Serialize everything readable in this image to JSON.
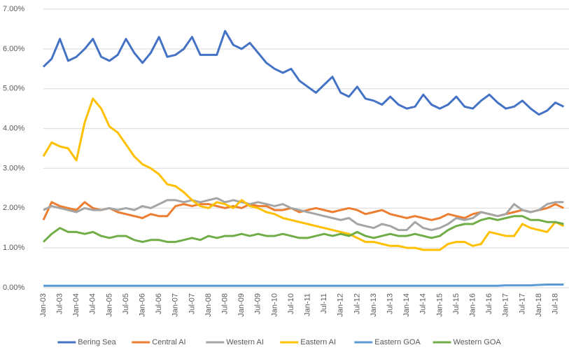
{
  "chart_data": {
    "type": "line",
    "categories": [
      "Jan-03",
      null,
      "Jul-03",
      null,
      "Jan-04",
      null,
      "Jul-04",
      null,
      "Jan-05",
      null,
      "Jul-05",
      null,
      "Jan-06",
      null,
      "Jul-06",
      null,
      "Jan-07",
      null,
      "Jul-07",
      null,
      "Jan-08",
      null,
      "Jul-08",
      null,
      "Jan-09",
      null,
      "Jul-09",
      null,
      "Jan-10",
      null,
      "Jul-10",
      null,
      "Jan-11",
      null,
      "Jul-11",
      null,
      "Jan-12",
      null,
      "Jul-12",
      null,
      "Jan-13",
      null,
      "Jul-13",
      null,
      "Jan-14",
      null,
      "Jul-14",
      null,
      "Jan-15",
      null,
      "Jul-15",
      null,
      "Jan-16",
      null,
      "Jul-16",
      null,
      "Jan-17",
      null,
      "Jul-17",
      null,
      "Jan-18",
      null,
      "Jul-18",
      null
    ],
    "series": [
      {
        "name": "Bering Sea",
        "color": "#4472c4",
        "values": [
          5.55,
          5.75,
          6.25,
          5.7,
          5.8,
          6.0,
          6.25,
          5.8,
          5.7,
          5.85,
          6.25,
          5.9,
          5.65,
          5.9,
          6.3,
          5.8,
          5.85,
          6.0,
          6.3,
          5.85,
          5.85,
          5.85,
          6.45,
          6.1,
          6.0,
          6.15,
          5.9,
          5.65,
          5.5,
          5.4,
          5.5,
          5.2,
          5.05,
          4.9,
          5.1,
          5.3,
          4.9,
          4.8,
          5.05,
          4.75,
          4.7,
          4.6,
          4.8,
          4.6,
          4.5,
          4.55,
          4.85,
          4.6,
          4.5,
          4.6,
          4.8,
          4.55,
          4.5,
          4.7,
          4.85,
          4.65,
          4.5,
          4.55,
          4.7,
          4.5,
          4.35,
          4.45,
          4.65,
          4.55
        ]
      },
      {
        "name": "Central AI",
        "color": "#ed7d31",
        "values": [
          1.7,
          2.15,
          2.05,
          2.0,
          1.95,
          2.15,
          2.0,
          1.95,
          2.0,
          1.9,
          1.85,
          1.8,
          1.75,
          1.85,
          1.8,
          1.8,
          2.05,
          2.1,
          2.05,
          2.1,
          2.1,
          2.05,
          2.0,
          2.05,
          2.0,
          2.1,
          2.05,
          2.05,
          1.95,
          1.95,
          2.0,
          1.9,
          1.95,
          2.0,
          1.95,
          1.9,
          1.95,
          2.0,
          1.95,
          1.85,
          1.9,
          1.95,
          1.85,
          1.8,
          1.75,
          1.8,
          1.75,
          1.7,
          1.75,
          1.85,
          1.8,
          1.75,
          1.85,
          1.9,
          1.85,
          1.8,
          1.85,
          1.9,
          1.95,
          1.9,
          1.95,
          2.0,
          2.1,
          2.0
        ]
      },
      {
        "name": "Western AI",
        "color": "#a5a5a5",
        "values": [
          1.95,
          2.05,
          2.0,
          1.95,
          1.9,
          2.0,
          1.95,
          1.95,
          2.0,
          1.95,
          2.0,
          1.95,
          2.05,
          2.0,
          2.1,
          2.2,
          2.2,
          2.15,
          2.2,
          2.15,
          2.2,
          2.25,
          2.15,
          2.2,
          2.15,
          2.1,
          2.15,
          2.1,
          2.05,
          2.1,
          2.0,
          1.95,
          1.9,
          1.85,
          1.8,
          1.75,
          1.7,
          1.75,
          1.6,
          1.55,
          1.5,
          1.6,
          1.55,
          1.45,
          1.45,
          1.65,
          1.5,
          1.45,
          1.5,
          1.6,
          1.75,
          1.7,
          1.75,
          1.9,
          1.85,
          1.8,
          1.85,
          2.1,
          1.95,
          1.9,
          1.95,
          2.1,
          2.15,
          2.15
        ]
      },
      {
        "name": "Eastern AI",
        "color": "#ffc000",
        "values": [
          3.3,
          3.65,
          3.55,
          3.5,
          3.2,
          4.15,
          4.75,
          4.5,
          4.05,
          3.9,
          3.6,
          3.3,
          3.1,
          3.0,
          2.85,
          2.6,
          2.55,
          2.4,
          2.2,
          2.05,
          2.0,
          2.15,
          2.1,
          2.0,
          2.2,
          2.05,
          2.0,
          1.9,
          1.85,
          1.75,
          1.7,
          1.65,
          1.6,
          1.55,
          1.5,
          1.45,
          1.4,
          1.35,
          1.25,
          1.15,
          1.15,
          1.1,
          1.05,
          1.05,
          1.0,
          1.0,
          0.95,
          0.95,
          0.95,
          1.1,
          1.15,
          1.15,
          1.05,
          1.1,
          1.4,
          1.35,
          1.3,
          1.3,
          1.6,
          1.5,
          1.45,
          1.4,
          1.65,
          1.55
        ]
      },
      {
        "name": "Eastern GOA",
        "color": "#5b9bd5",
        "values": [
          0.05,
          0.05,
          0.05,
          0.05,
          0.05,
          0.05,
          0.05,
          0.05,
          0.05,
          0.05,
          0.05,
          0.05,
          0.05,
          0.05,
          0.05,
          0.05,
          0.05,
          0.05,
          0.05,
          0.05,
          0.05,
          0.05,
          0.05,
          0.05,
          0.05,
          0.05,
          0.05,
          0.05,
          0.05,
          0.05,
          0.05,
          0.05,
          0.05,
          0.05,
          0.05,
          0.05,
          0.05,
          0.05,
          0.05,
          0.05,
          0.05,
          0.05,
          0.05,
          0.05,
          0.05,
          0.05,
          0.05,
          0.05,
          0.05,
          0.05,
          0.05,
          0.05,
          0.05,
          0.05,
          0.05,
          0.05,
          0.06,
          0.06,
          0.06,
          0.06,
          0.07,
          0.08,
          0.08,
          0.08
        ]
      },
      {
        "name": "Western GOA",
        "color": "#70ad47",
        "values": [
          1.15,
          1.35,
          1.5,
          1.4,
          1.4,
          1.35,
          1.4,
          1.3,
          1.25,
          1.3,
          1.3,
          1.2,
          1.15,
          1.2,
          1.2,
          1.15,
          1.15,
          1.2,
          1.25,
          1.2,
          1.3,
          1.25,
          1.3,
          1.3,
          1.35,
          1.3,
          1.35,
          1.3,
          1.3,
          1.35,
          1.3,
          1.25,
          1.25,
          1.3,
          1.35,
          1.3,
          1.35,
          1.3,
          1.4,
          1.3,
          1.25,
          1.3,
          1.35,
          1.3,
          1.3,
          1.35,
          1.3,
          1.25,
          1.3,
          1.45,
          1.55,
          1.6,
          1.6,
          1.7,
          1.75,
          1.7,
          1.75,
          1.8,
          1.8,
          1.7,
          1.7,
          1.65,
          1.65,
          1.6
        ]
      }
    ],
    "ylim": [
      0,
      7
    ],
    "yticks": [
      {
        "value": 0,
        "label": "0.00%"
      },
      {
        "value": 1,
        "label": "1.00%"
      },
      {
        "value": 2,
        "label": "2.00%"
      },
      {
        "value": 3,
        "label": "3.00%"
      },
      {
        "value": 4,
        "label": "4.00%"
      },
      {
        "value": 5,
        "label": "5.00%"
      },
      {
        "value": 6,
        "label": "6.00%"
      },
      {
        "value": 7,
        "label": "7.00%"
      }
    ],
    "grid": true,
    "legend": "bottom"
  }
}
